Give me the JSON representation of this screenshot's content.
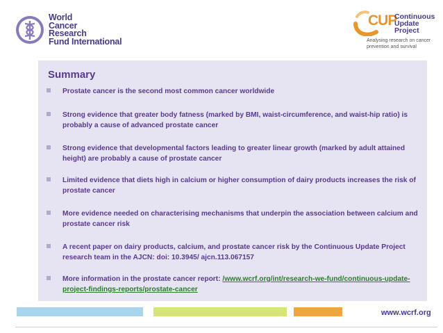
{
  "header": {
    "wcrf_logo": {
      "icon": "caduceus-logo-icon",
      "lines": [
        "World",
        "Cancer",
        "Research",
        "Fund International"
      ]
    },
    "cup_logo": {
      "abbr": "CUP",
      "name_lines": [
        "Continuous",
        "Update",
        "Project"
      ],
      "tagline": "Analysing research on cancer prevention and survival"
    }
  },
  "summary": {
    "title": "Summary",
    "bullets": [
      {
        "text": "Prostate cancer is the second most common cancer worldwide"
      },
      {
        "text": "Strong evidence that greater body fatness (marked by BMI, waist-circumference, and waist-hip ratio) is probably a cause of advanced prostate cancer"
      },
      {
        "text": "Strong evidence that developmental factors leading to greater linear growth (marked by adult attained height) are probably a cause of prostate cancer"
      },
      {
        "text": "Limited evidence that diets high in calcium or higher consumption of dairy products increases the risk of prostate cancer"
      },
      {
        "text": "More evidence needed on characterising mechanisms that underpin the association between calcium and prostate cancer risk"
      },
      {
        "text": "A recent paper on dairy products, calcium, and prostate cancer risk by the Continuous Update Project research team in the AJCN: doi: 10.3945/ ajcn.113.067157"
      },
      {
        "text": "More information in the prostate cancer report: ",
        "link": "/www.wcrf.org/int/research-we-fund/continuous-update-project-findings-reports/prostate-cancer"
      }
    ]
  },
  "footer": {
    "website": "www.wcrf.org",
    "colors": {
      "blue": "#a8d4ec",
      "green": "#d7e47a",
      "orange": "#f2a43e"
    }
  },
  "colors": {
    "accent": "#5a3a8e",
    "panel": "#e6e3f2"
  }
}
